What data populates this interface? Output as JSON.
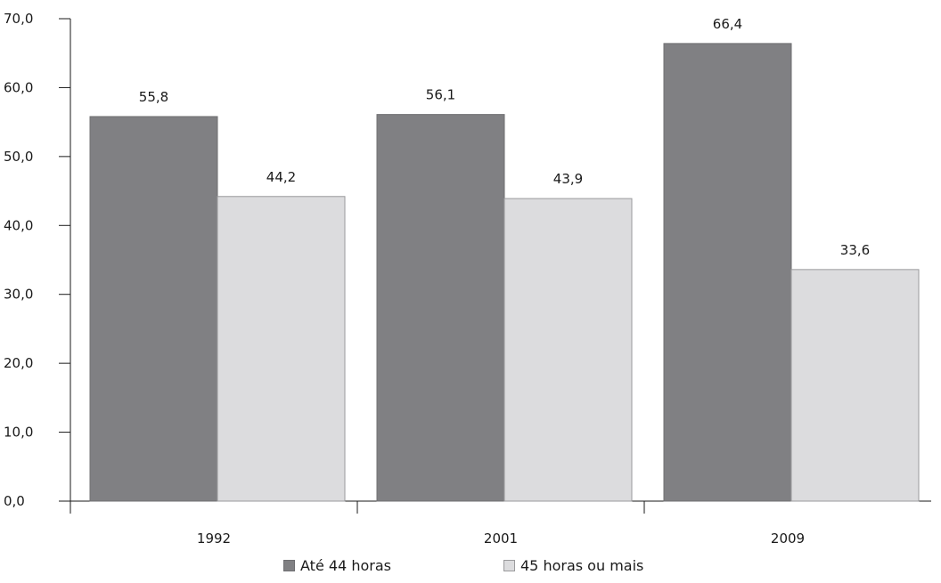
{
  "chart_data": {
    "type": "bar",
    "categories": [
      "1992",
      "2001",
      "2009"
    ],
    "series": [
      {
        "name": "Até 44 horas",
        "values": [
          55.8,
          56.1,
          66.4
        ],
        "color": "#808083",
        "labels": [
          "55,8",
          "56,1",
          "66,4"
        ]
      },
      {
        "name": "45 horas ou mais",
        "values": [
          44.2,
          43.9,
          33.6
        ],
        "color": "#dcdcde",
        "labels": [
          "44,2",
          "43,9",
          "33,6"
        ]
      }
    ],
    "ylim": [
      0,
      70
    ],
    "yticks": [
      0,
      10,
      20,
      30,
      40,
      50,
      60,
      70
    ],
    "ytick_labels": [
      "0,0",
      "10,0",
      "20,0",
      "30,0",
      "40,0",
      "50,0",
      "60,0",
      "70,0"
    ],
    "grid": false,
    "legend_position": "bottom"
  }
}
